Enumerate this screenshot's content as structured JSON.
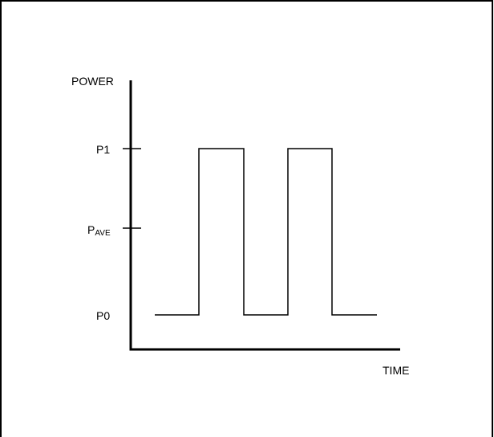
{
  "axis_labels": {
    "y": "POWER",
    "x": "TIME"
  },
  "levels": {
    "p1": "P1",
    "pave_base": "P",
    "pave_sub": "AVE",
    "p0": "P0"
  },
  "chart_data": {
    "type": "line",
    "ylabel": "POWER",
    "xlabel": "TIME",
    "y_ticks": [
      "P0",
      "PAVE",
      "P1"
    ],
    "series": [
      {
        "levels": [
          "P0",
          "P1",
          "P0",
          "P1",
          "P0"
        ]
      }
    ]
  }
}
